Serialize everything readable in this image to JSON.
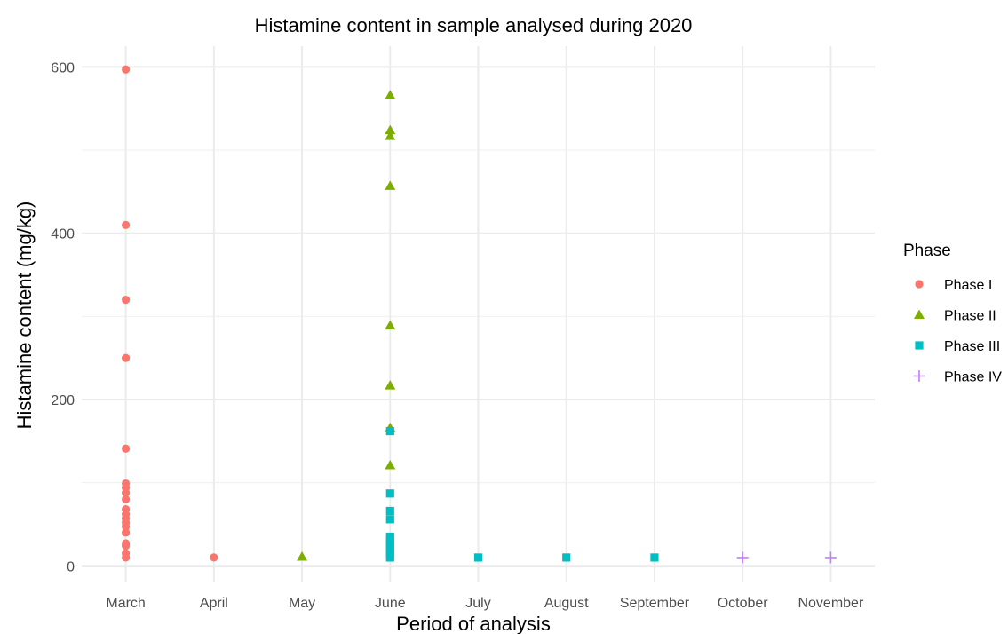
{
  "chart_data": {
    "type": "scatter",
    "title": "Histamine content in sample analysed during 2020",
    "xlabel": "Period of analysis",
    "ylabel": "Histamine content (mg/kg)",
    "categories": [
      "March",
      "April",
      "May",
      "June",
      "July",
      "August",
      "September",
      "October",
      "November"
    ],
    "ylim": [
      -20,
      625
    ],
    "y_ticks": [
      0,
      200,
      400,
      600
    ],
    "grid": true,
    "legend": {
      "title": "Phase",
      "position": "right"
    },
    "series": [
      {
        "name": "Phase I",
        "shape": "circle",
        "color": "#F8766D",
        "points": [
          {
            "x": "March",
            "y": 597
          },
          {
            "x": "March",
            "y": 410
          },
          {
            "x": "March",
            "y": 320
          },
          {
            "x": "March",
            "y": 250
          },
          {
            "x": "March",
            "y": 141
          },
          {
            "x": "March",
            "y": 99
          },
          {
            "x": "March",
            "y": 94
          },
          {
            "x": "March",
            "y": 88
          },
          {
            "x": "March",
            "y": 80
          },
          {
            "x": "March",
            "y": 68
          },
          {
            "x": "March",
            "y": 62
          },
          {
            "x": "March",
            "y": 57
          },
          {
            "x": "March",
            "y": 52
          },
          {
            "x": "March",
            "y": 47
          },
          {
            "x": "March",
            "y": 40
          },
          {
            "x": "March",
            "y": 27
          },
          {
            "x": "March",
            "y": 24
          },
          {
            "x": "March",
            "y": 15
          },
          {
            "x": "March",
            "y": 10
          },
          {
            "x": "April",
            "y": 10
          }
        ]
      },
      {
        "name": "Phase II",
        "shape": "triangle",
        "color": "#7CAE00",
        "points": [
          {
            "x": "May",
            "y": 11
          },
          {
            "x": "June",
            "y": 566
          },
          {
            "x": "June",
            "y": 524
          },
          {
            "x": "June",
            "y": 517
          },
          {
            "x": "June",
            "y": 457
          },
          {
            "x": "June",
            "y": 289
          },
          {
            "x": "June",
            "y": 217
          },
          {
            "x": "June",
            "y": 166
          },
          {
            "x": "June",
            "y": 121
          }
        ]
      },
      {
        "name": "Phase III",
        "shape": "square",
        "color": "#00BFC4",
        "points": [
          {
            "x": "June",
            "y": 162
          },
          {
            "x": "June",
            "y": 87
          },
          {
            "x": "June",
            "y": 66
          },
          {
            "x": "June",
            "y": 56
          },
          {
            "x": "June",
            "y": 35
          },
          {
            "x": "June",
            "y": 30
          },
          {
            "x": "June",
            "y": 25
          },
          {
            "x": "June",
            "y": 20
          },
          {
            "x": "June",
            "y": 15
          },
          {
            "x": "June",
            "y": 10
          },
          {
            "x": "July",
            "y": 10
          },
          {
            "x": "August",
            "y": 10
          },
          {
            "x": "September",
            "y": 10
          }
        ]
      },
      {
        "name": "Phase IV",
        "shape": "plus",
        "color": "#C77CFF",
        "points": [
          {
            "x": "October",
            "y": 10
          },
          {
            "x": "November",
            "y": 10
          }
        ]
      }
    ]
  }
}
